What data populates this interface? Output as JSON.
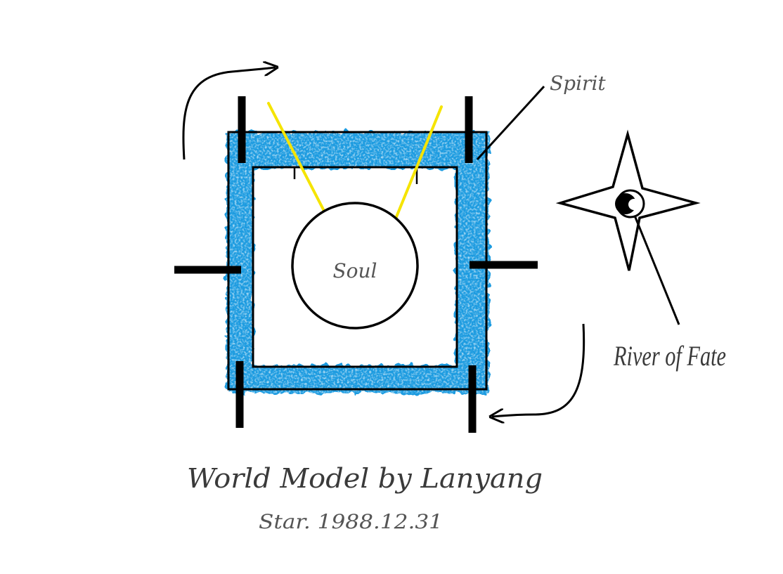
{
  "labels": {
    "spirit": "Spirit",
    "soul": "Soul",
    "river_of_fate": "River of Fate",
    "title": "World Model by Lanyang",
    "subtitle": "Star. 1988.12.31"
  },
  "colors": {
    "spirit_band": "#1e9be0",
    "spirit_band_light": "#8fd0f3",
    "rays": "#f5e400",
    "ink": "#000000",
    "label_ink": "#555555",
    "background": "#ffffff"
  },
  "icons": {
    "compass_star": "four-point-star-icon",
    "eye": "eye-icon"
  }
}
